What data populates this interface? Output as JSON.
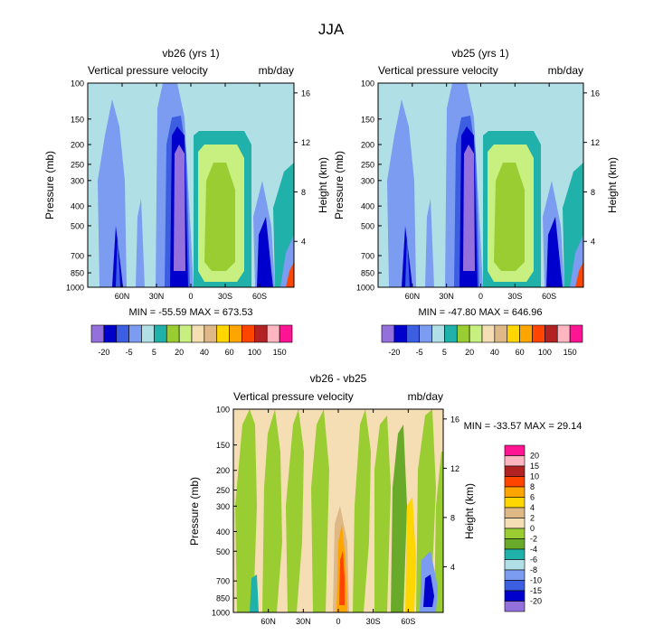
{
  "figure_title": "JJA",
  "palette": [
    "#9370db",
    "#0000cd",
    "#3b5fe0",
    "#7b9cf0",
    "#b0e0e6",
    "#20b2aa",
    "#9acd32",
    "#c8f080",
    "#f5deb3",
    "#deb887",
    "#ffd700",
    "#ffa500",
    "#ff4500",
    "#b22222",
    "#ffb6c1",
    "#ff1493"
  ],
  "diff_palette": [
    "#9370db",
    "#0000cd",
    "#3b5fe0",
    "#7b9cf0",
    "#b0e0e6",
    "#20b2aa",
    "#6aaa2a",
    "#9acd32",
    "#f5deb3",
    "#deb887",
    "#ffd700",
    "#ffa500",
    "#ff4500",
    "#b22222",
    "#ffb6c1",
    "#ff1493"
  ],
  "chart_data": [
    {
      "type": "contour",
      "title": "vb26 (yrs 1)",
      "left_label": "Vertical pressure velocity",
      "right_label": "mb/day",
      "ylabel": "Pressure (mb)",
      "y2label": "Height (km)",
      "yticks": [
        "100",
        "150",
        "200",
        "250",
        "300",
        "400",
        "500",
        "700",
        "850",
        "1000"
      ],
      "y2ticks": [
        "16",
        "12",
        "8",
        "4"
      ],
      "xticks": [
        "60N",
        "30N",
        "0",
        "30S",
        "60S"
      ],
      "minmax": "MIN = -55.59  MAX = 673.53",
      "colorbar_labels": [
        "-20",
        "-5",
        "5",
        "20",
        "40",
        "60",
        "100",
        "150"
      ]
    },
    {
      "type": "contour",
      "title": "vb25 (yrs 1)",
      "left_label": "Vertical pressure velocity",
      "right_label": "mb/day",
      "ylabel": "Pressure (mb)",
      "y2label": "Height (km)",
      "yticks": [
        "100",
        "150",
        "200",
        "250",
        "300",
        "400",
        "500",
        "700",
        "850",
        "1000"
      ],
      "y2ticks": [
        "16",
        "12",
        "8",
        "4"
      ],
      "xticks": [
        "60N",
        "30N",
        "0",
        "30S",
        "60S"
      ],
      "minmax": "MIN = -47.80  MAX = 646.96",
      "colorbar_labels": [
        "-20",
        "-5",
        "5",
        "20",
        "40",
        "60",
        "100",
        "150"
      ]
    },
    {
      "type": "contour",
      "title": "vb26 - vb25",
      "left_label": "Vertical pressure velocity",
      "right_label": "mb/day",
      "ylabel": "Pressure (mb)",
      "y2label": "Height (km)",
      "yticks": [
        "100",
        "150",
        "200",
        "250",
        "300",
        "400",
        "500",
        "700",
        "850",
        "1000"
      ],
      "y2ticks": [
        "16",
        "12",
        "8",
        "4"
      ],
      "xticks": [
        "60N",
        "30N",
        "0",
        "30S",
        "60S"
      ],
      "minmax": "MIN = -33.57  MAX = 29.14",
      "colorbar_labels": [
        "20",
        "15",
        "10",
        "8",
        "6",
        "4",
        "2",
        "0",
        "-2",
        "-4",
        "-6",
        "-8",
        "-10",
        "-15",
        "-20"
      ]
    }
  ]
}
